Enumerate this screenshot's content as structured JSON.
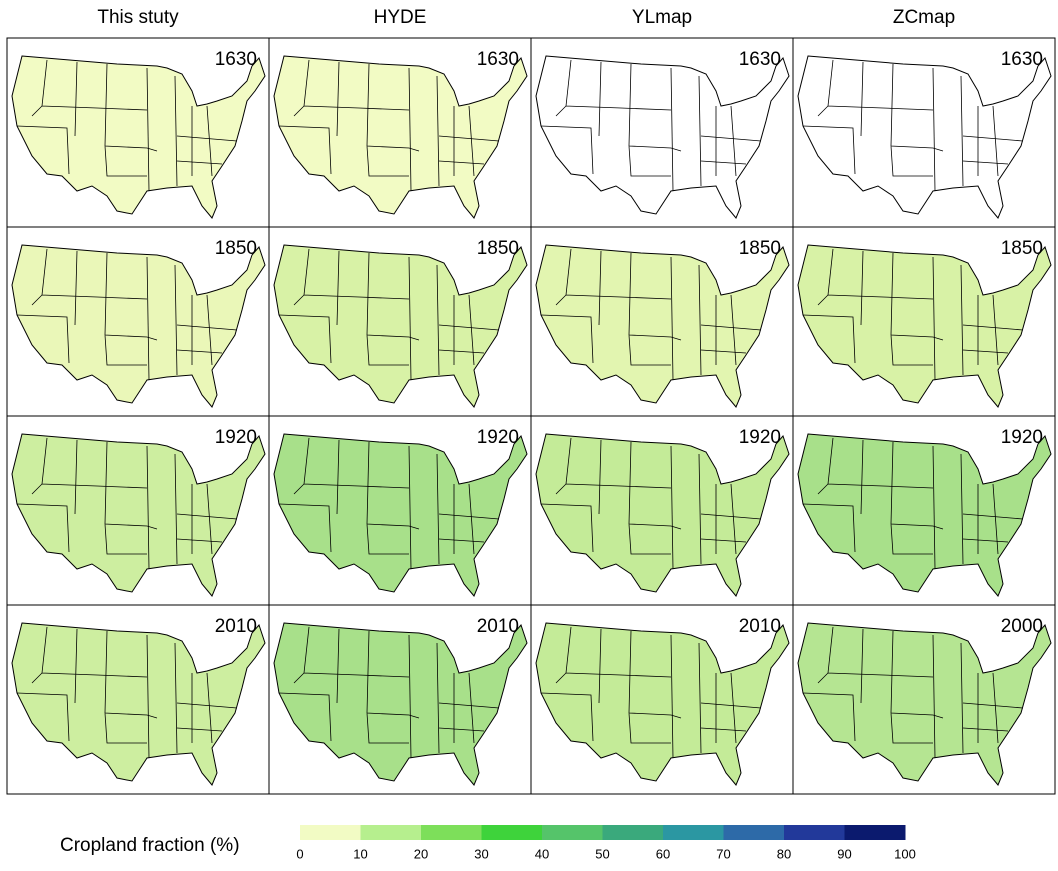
{
  "columns": [
    "This stuty",
    "HYDE",
    "YLmap",
    "ZCmap"
  ],
  "panels": [
    [
      {
        "year": "1630",
        "fill": "#f2fbc4"
      },
      {
        "year": "1630",
        "fill": "#f2fbc4"
      },
      {
        "year": "1630",
        "fill": "#ffffff"
      },
      {
        "year": "1630",
        "fill": "#ffffff"
      }
    ],
    [
      {
        "year": "1850",
        "fill": "#eaf7b8"
      },
      {
        "year": "1850",
        "fill": "#d8f2a6"
      },
      {
        "year": "1850",
        "fill": "#e2f5b0"
      },
      {
        "year": "1850",
        "fill": "#d8f2a6"
      }
    ],
    [
      {
        "year": "1920",
        "fill": "#cdeea0"
      },
      {
        "year": "1920",
        "fill": "#a8e08a"
      },
      {
        "year": "1920",
        "fill": "#c4eb98"
      },
      {
        "year": "1920",
        "fill": "#a8e08a"
      }
    ],
    [
      {
        "year": "2010",
        "fill": "#cdeea0"
      },
      {
        "year": "2010",
        "fill": "#a8e08a"
      },
      {
        "year": "2010",
        "fill": "#c4eb98"
      },
      {
        "year": "2000",
        "fill": "#b5e592"
      }
    ]
  ],
  "legend": {
    "title": "Cropland  fraction (%)",
    "ticks": [
      0,
      10,
      20,
      30,
      40,
      50,
      60,
      70,
      80,
      90,
      100
    ],
    "colors": [
      "#f2fbc4",
      "#b6ef8e",
      "#7ddf5a",
      "#3ed33b",
      "#55c46a",
      "#3aa97c",
      "#2b97a2",
      "#2d6aa8",
      "#22399a",
      "#0b1a6e"
    ]
  }
}
